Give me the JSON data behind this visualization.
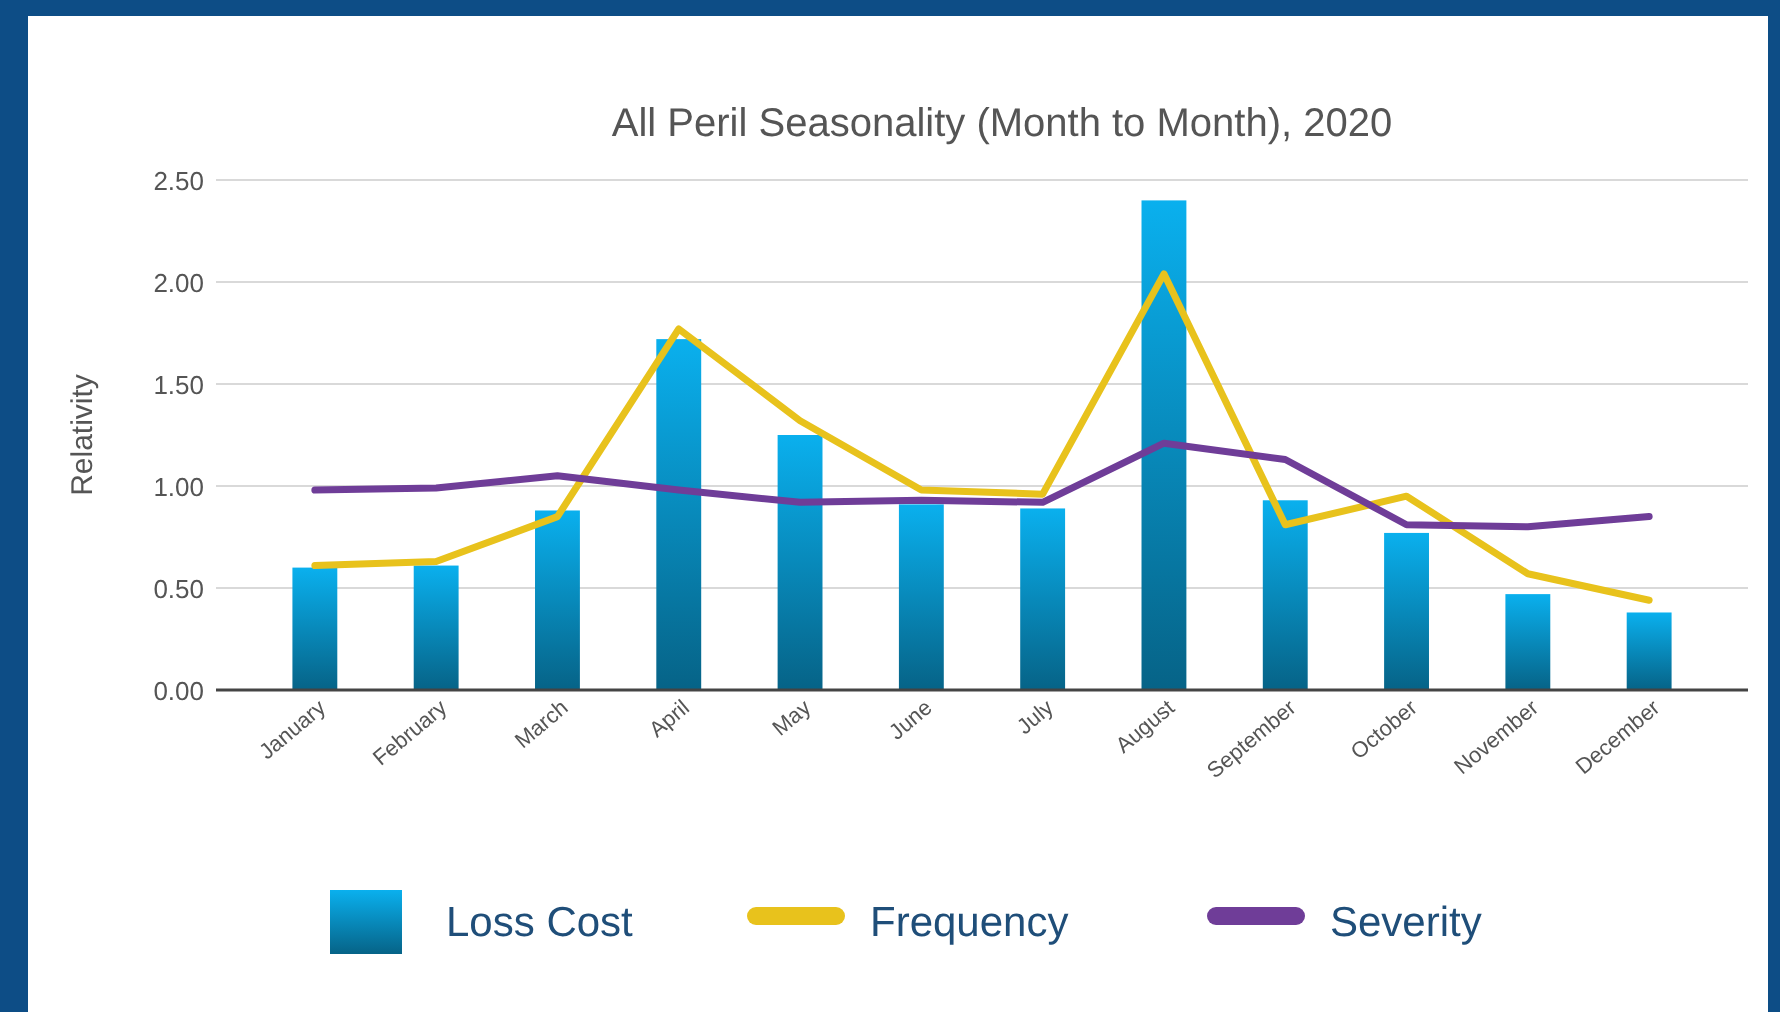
{
  "chart_data": {
    "type": "bar",
    "title": "All Peril Seasonality (Month to Month), 2020",
    "ylabel": "Relativity",
    "categories": [
      "January",
      "February",
      "March",
      "April",
      "May",
      "June",
      "July",
      "August",
      "September",
      "October",
      "November",
      "December"
    ],
    "series": [
      {
        "name": "Loss Cost",
        "color": "#0ab0ee",
        "values": [
          0.6,
          0.61,
          0.88,
          1.72,
          1.25,
          0.91,
          0.89,
          2.4,
          0.93,
          0.77,
          0.47,
          0.38
        ]
      },
      {
        "name": "Frequency",
        "type": "line",
        "color": "#e8c21c",
        "values": [
          0.61,
          0.63,
          0.85,
          1.77,
          1.32,
          0.98,
          0.96,
          2.04,
          0.81,
          0.95,
          0.57,
          0.44
        ]
      },
      {
        "name": "Severity",
        "type": "line",
        "color": "#6f3d98",
        "values": [
          0.98,
          0.99,
          1.05,
          0.98,
          0.92,
          0.93,
          0.92,
          1.21,
          1.13,
          0.81,
          0.8,
          0.85
        ]
      }
    ],
    "ylim": [
      0,
      2.5
    ],
    "yticks": [
      {
        "value": 0,
        "label": "0.00"
      },
      {
        "value": 0.5,
        "label": "0.50"
      },
      {
        "value": 1,
        "label": "1.00"
      },
      {
        "value": 1.5,
        "label": "1.50"
      },
      {
        "value": 2,
        "label": "2.00"
      },
      {
        "value": 2.5,
        "label": "2.50"
      }
    ],
    "grid": "y",
    "legend": "bottom",
    "marker": "none",
    "line_style": "solid"
  }
}
